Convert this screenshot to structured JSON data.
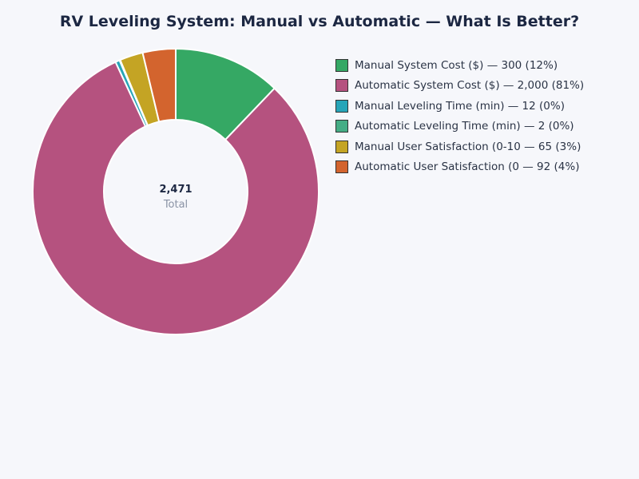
{
  "chart_data": {
    "type": "pie",
    "donut": true,
    "title": "RV Leveling System: Manual vs Automatic — What Is Better?",
    "center_value": "2,471",
    "center_label": "Total",
    "legend_position": "right",
    "slices": [
      {
        "label": "Manual System Cost ($) — 300 (12%)",
        "value": 300,
        "color": "#35a864"
      },
      {
        "label": "Automatic System Cost ($) — 2,000 (81%)",
        "value": 2000,
        "color": "#b5527f"
      },
      {
        "label": "Manual Leveling Time (min) — 12 (0%)",
        "value": 12,
        "color": "#27a5b8"
      },
      {
        "label": "Automatic Leveling Time (min) — 2 (0%)",
        "value": 2,
        "color": "#45ad85"
      },
      {
        "label": "Manual User Satisfaction (0-10 — 65 (3%)",
        "value": 65,
        "color": "#c4a424"
      },
      {
        "label": "Automatic User Satisfaction (0 — 92 (4%)",
        "value": 92,
        "color": "#d3642e"
      }
    ]
  }
}
